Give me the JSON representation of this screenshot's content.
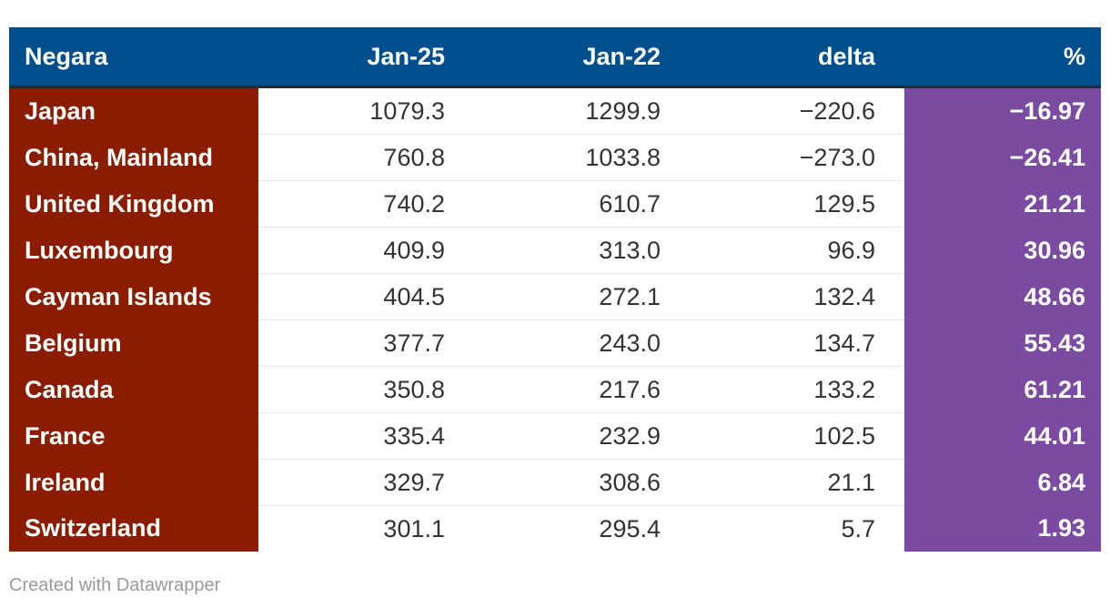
{
  "chart_data": {
    "type": "table",
    "columns": [
      "Negara",
      "Jan-25",
      "Jan-22",
      "delta",
      "%"
    ],
    "rows": [
      {
        "country": "Japan",
        "jan25": "1079.3",
        "jan22": "1299.9",
        "delta": "−220.6",
        "pct": "−16.97"
      },
      {
        "country": "China, Mainland",
        "jan25": "760.8",
        "jan22": "1033.8",
        "delta": "−273.0",
        "pct": "−26.41"
      },
      {
        "country": "United Kingdom",
        "jan25": "740.2",
        "jan22": "610.7",
        "delta": "129.5",
        "pct": "21.21"
      },
      {
        "country": "Luxembourg",
        "jan25": "409.9",
        "jan22": "313.0",
        "delta": "96.9",
        "pct": "30.96"
      },
      {
        "country": "Cayman Islands",
        "jan25": "404.5",
        "jan22": "272.1",
        "delta": "132.4",
        "pct": "48.66"
      },
      {
        "country": "Belgium",
        "jan25": "377.7",
        "jan22": "243.0",
        "delta": "134.7",
        "pct": "55.43"
      },
      {
        "country": "Canada",
        "jan25": "350.8",
        "jan22": "217.6",
        "delta": "133.2",
        "pct": "61.21"
      },
      {
        "country": "France",
        "jan25": "335.4",
        "jan22": "232.9",
        "delta": "102.5",
        "pct": "44.01"
      },
      {
        "country": "Ireland",
        "jan25": "329.7",
        "jan22": "308.6",
        "delta": "21.1",
        "pct": "6.84"
      },
      {
        "country": "Switzerland",
        "jan25": "301.1",
        "jan22": "295.4",
        "delta": "5.7",
        "pct": "1.93"
      }
    ],
    "colors": {
      "header": "#004f8d",
      "country_column": "#8b1c00",
      "percent_column": "#7b4ba1"
    }
  },
  "footer": {
    "credit": "Created with Datawrapper"
  }
}
